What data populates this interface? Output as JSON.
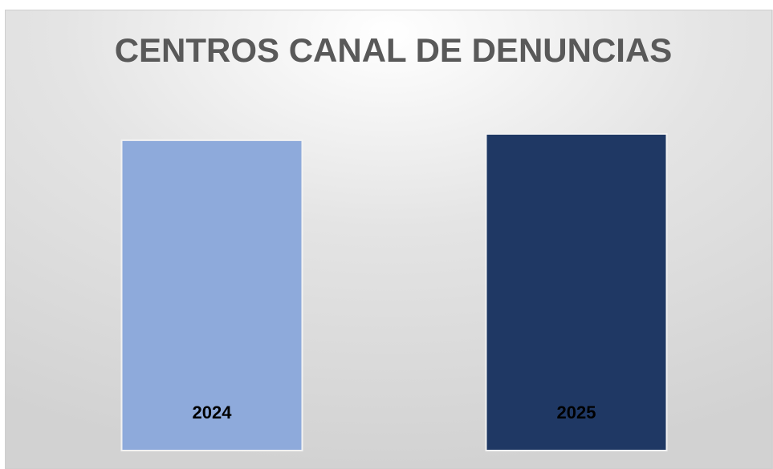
{
  "chart_data": {
    "type": "bar",
    "title": "CENTROS CANAL DE DENUNCIAS",
    "categories": [
      "2024",
      "2025"
    ],
    "values": [
      98,
      100
    ],
    "colors": [
      "#8eaadb",
      "#1f3864"
    ],
    "ylim": [
      0,
      100
    ]
  }
}
